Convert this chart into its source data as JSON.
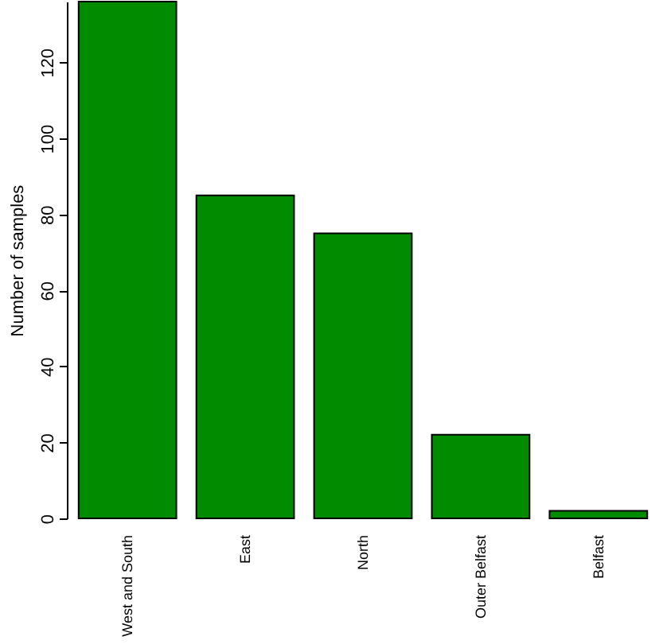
{
  "chart_data": {
    "type": "bar",
    "ylabel": "Number of samples",
    "categories": [
      "West and South",
      "East",
      "North",
      "Outer Belfast",
      "Belfast"
    ],
    "values": [
      136,
      85,
      75,
      22,
      2
    ],
    "color": "#008b00",
    "ylim": [
      0,
      136
    ],
    "yticks": [
      0,
      20,
      40,
      60,
      80,
      100,
      120
    ],
    "grid": false
  }
}
